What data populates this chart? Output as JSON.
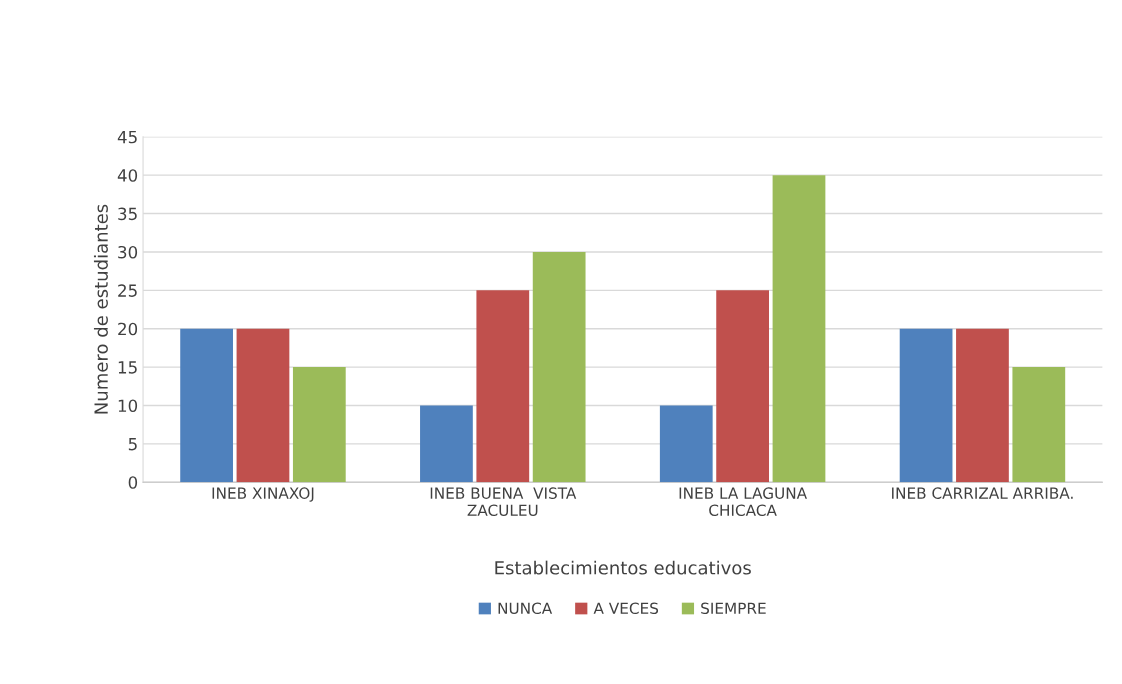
{
  "chart_data": {
    "type": "bar",
    "xlabel": "Establecimientos educativos",
    "ylabel": "Numero de estudiantes",
    "categories": [
      "INEB XINAXOJ",
      "INEB BUENA  VISTA\nZACULEU",
      "INEB LA LAGUNA\nCHICACA",
      "INEB CARRIZAL ARRIBA."
    ],
    "series": [
      {
        "name": "NUNCA",
        "color": "#4f81bd",
        "values": [
          20,
          10,
          10,
          20
        ]
      },
      {
        "name": "A VECES",
        "color": "#c0504d",
        "values": [
          20,
          25,
          25,
          20
        ]
      },
      {
        "name": "SIEMPRE",
        "color": "#9bbb59",
        "values": [
          15,
          30,
          40,
          15
        ]
      }
    ],
    "ylim": [
      0,
      45
    ],
    "yticks": [
      0,
      5,
      10,
      15,
      20,
      25,
      30,
      35,
      40,
      45
    ],
    "grid": "y",
    "legend": "bottom"
  }
}
